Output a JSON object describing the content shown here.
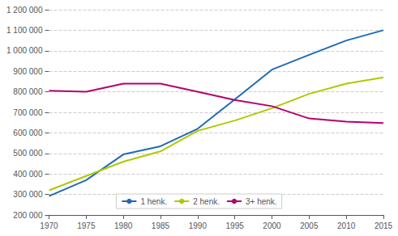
{
  "chart_data": {
    "type": "line",
    "x": [
      1970,
      1975,
      1980,
      1985,
      1990,
      1995,
      2000,
      2005,
      2010,
      2015
    ],
    "series": [
      {
        "name": "1 henk.",
        "color": "#1f6ab5",
        "values": [
          292000,
          370000,
          495000,
          535000,
          620000,
          763000,
          908000,
          980000,
          1050000,
          1100000
        ]
      },
      {
        "name": "2 henk.",
        "color": "#b0c800",
        "values": [
          320000,
          390000,
          460000,
          510000,
          610000,
          660000,
          720000,
          790000,
          840000,
          870000
        ]
      },
      {
        "name": "3+ henk.",
        "color": "#b5006e",
        "values": [
          805000,
          800000,
          840000,
          840000,
          800000,
          760000,
          730000,
          670000,
          655000,
          648000
        ]
      }
    ],
    "xlim": [
      1970,
      2015
    ],
    "xticks": [
      1970,
      1975,
      1980,
      1985,
      1990,
      1995,
      2000,
      2005,
      2010,
      2015
    ],
    "ylim": [
      200000,
      1200000
    ],
    "yticks": [
      {
        "value": 200000,
        "label": "200 000"
      },
      {
        "value": 300000,
        "label": "300 000"
      },
      {
        "value": 400000,
        "label": "400 000"
      },
      {
        "value": 500000,
        "label": "500 000"
      },
      {
        "value": 600000,
        "label": "600 000"
      },
      {
        "value": 700000,
        "label": "700 000"
      },
      {
        "value": 800000,
        "label": "800 000"
      },
      {
        "value": 900000,
        "label": "900 000"
      },
      {
        "value": 1000000,
        "label": "1 000 000"
      },
      {
        "value": 1100000,
        "label": "1 100 000"
      },
      {
        "value": 1200000,
        "label": "1 200 000"
      }
    ],
    "grid": true,
    "legend": "bottom"
  }
}
